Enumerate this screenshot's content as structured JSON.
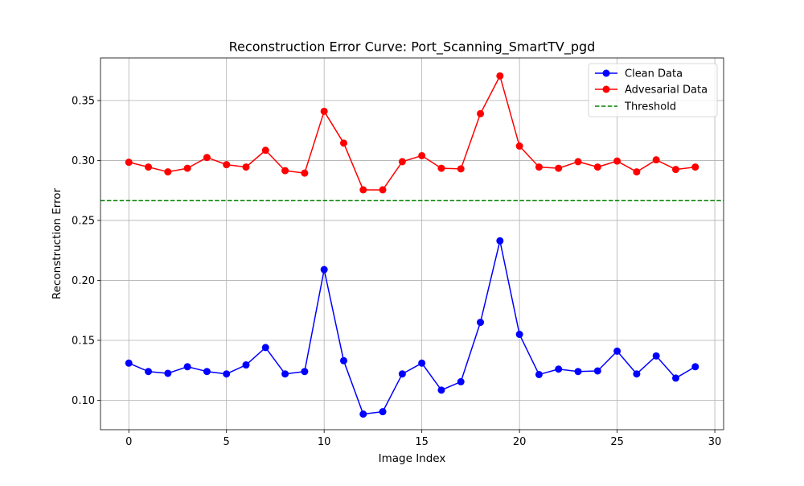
{
  "chart_data": {
    "type": "line",
    "title": "Reconstruction Error Curve: Port_Scanning_SmartTV_pgd",
    "xlabel": "Image Index",
    "ylabel": "Reconstruction Error",
    "xlim": [
      -1.45,
      30.45
    ],
    "ylim": [
      0.0755,
      0.3855
    ],
    "xticks": [
      0,
      5,
      10,
      15,
      20,
      25,
      30
    ],
    "yticks": [
      0.1,
      0.15,
      0.2,
      0.25,
      0.3,
      0.35
    ],
    "grid": true,
    "legend_position": "top-right",
    "x": [
      0,
      1,
      2,
      3,
      4,
      5,
      6,
      7,
      8,
      9,
      10,
      11,
      12,
      13,
      14,
      15,
      16,
      17,
      18,
      19,
      20,
      21,
      22,
      23,
      24,
      25,
      26,
      27,
      28,
      29
    ],
    "series": [
      {
        "name": "Clean Data",
        "color": "#0000ff",
        "marker": "circle",
        "linestyle": "solid",
        "values": [
          0.131,
          0.124,
          0.1225,
          0.128,
          0.124,
          0.122,
          0.1295,
          0.144,
          0.122,
          0.124,
          0.209,
          0.133,
          0.0885,
          0.0905,
          0.122,
          0.131,
          0.1085,
          0.1155,
          0.165,
          0.233,
          0.155,
          0.1215,
          0.126,
          0.124,
          0.1245,
          0.141,
          0.122,
          0.137,
          0.1185,
          0.128
        ]
      },
      {
        "name": "Advesarial Data",
        "color": "#ff0000",
        "marker": "circle",
        "linestyle": "solid",
        "values": [
          0.2985,
          0.2945,
          0.2905,
          0.2935,
          0.3025,
          0.2965,
          0.2945,
          0.3085,
          0.2915,
          0.2895,
          0.341,
          0.3145,
          0.2755,
          0.2755,
          0.299,
          0.304,
          0.2935,
          0.293,
          0.339,
          0.3705,
          0.312,
          0.2945,
          0.2935,
          0.299,
          0.2945,
          0.2995,
          0.2905,
          0.3005,
          0.2925,
          0.2945
        ]
      },
      {
        "name": "Threshold",
        "color": "#008000",
        "linestyle": "dashed",
        "value": 0.2665
      }
    ]
  }
}
